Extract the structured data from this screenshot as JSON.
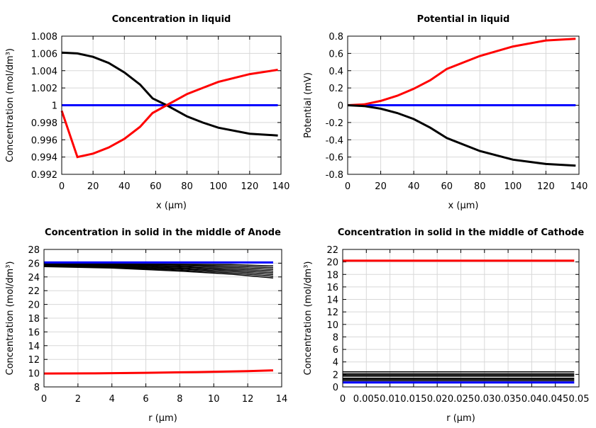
{
  "chart_data": [
    {
      "type": "line",
      "title": "Concentration in liquid",
      "xlabel": "x (µm)",
      "ylabel": "Concentration (mol/dm³)",
      "xlim": [
        0,
        140
      ],
      "ylim": [
        0.992,
        1.008
      ],
      "xticks": [
        "0",
        "20",
        "40",
        "60",
        "80",
        "100",
        "120",
        "140"
      ],
      "yticks": [
        "0.992",
        "0.994",
        "0.996",
        "0.998",
        "1",
        "1.002",
        "1.004",
        "1.006",
        "1.008"
      ],
      "grid": true,
      "series": [
        {
          "color": "#0000ff",
          "x": [
            0,
            138
          ],
          "y": [
            1.0,
            1.0
          ]
        },
        {
          "color": "#000000",
          "x": [
            0,
            10,
            20,
            30,
            40,
            50,
            58,
            67,
            80,
            90,
            100,
            120,
            138
          ],
          "y": [
            1.0061,
            1.006,
            1.0056,
            1.0049,
            1.0038,
            1.0024,
            1.0008,
            1.0,
            0.9987,
            0.998,
            0.9974,
            0.9967,
            0.9965
          ]
        },
        {
          "color": "#ff0000",
          "x": [
            0,
            10,
            20,
            30,
            40,
            50,
            58,
            67,
            80,
            90,
            100,
            120,
            138
          ],
          "y": [
            0.99935,
            0.994,
            0.9944,
            0.9951,
            0.9961,
            0.9975,
            0.9991,
            1.0,
            1.0013,
            1.002,
            1.0027,
            1.0036,
            1.0041
          ]
        }
      ]
    },
    {
      "type": "line",
      "title": "Potential in liquid",
      "xlabel": "x (µm)",
      "ylabel": "Potential (mV)",
      "xlim": [
        0,
        140
      ],
      "ylim": [
        -0.8,
        0.8
      ],
      "xticks": [
        "0",
        "20",
        "40",
        "60",
        "80",
        "100",
        "120",
        "140"
      ],
      "yticks": [
        "-0.8",
        "-0.6",
        "-0.4",
        "-0.2",
        "0",
        "0.2",
        "0.4",
        "0.6",
        "0.8"
      ],
      "grid": true,
      "series": [
        {
          "color": "#0000ff",
          "x": [
            0,
            138
          ],
          "y": [
            0,
            0
          ]
        },
        {
          "color": "#ff0000",
          "x": [
            0,
            10,
            20,
            30,
            40,
            50,
            60,
            80,
            100,
            120,
            138
          ],
          "y": [
            0,
            0.01,
            0.05,
            0.11,
            0.19,
            0.29,
            0.42,
            0.57,
            0.68,
            0.75,
            0.77
          ]
        },
        {
          "color": "#000000",
          "x": [
            0,
            10,
            20,
            30,
            40,
            50,
            60,
            80,
            100,
            120,
            138
          ],
          "y": [
            0,
            -0.01,
            -0.04,
            -0.09,
            -0.16,
            -0.26,
            -0.38,
            -0.53,
            -0.63,
            -0.68,
            -0.7
          ]
        }
      ]
    },
    {
      "type": "line",
      "title": "Concentration in solid in the middle of Anode",
      "xlabel": "r (µm)",
      "ylabel": "Concentration (mol/dm³)",
      "xlim": [
        0,
        14
      ],
      "ylim": [
        8,
        28
      ],
      "xticks": [
        "0",
        "2",
        "4",
        "6",
        "8",
        "10",
        "12",
        "14"
      ],
      "yticks": [
        "8",
        "10",
        "12",
        "14",
        "16",
        "18",
        "20",
        "22",
        "24",
        "26",
        "28"
      ],
      "grid": true,
      "series": [
        {
          "color": "#000000",
          "x": [
            0,
            4,
            8,
            11,
            13.5
          ],
          "y": [
            25.9,
            25.9,
            25.85,
            25.8,
            25.6
          ]
        },
        {
          "color": "#000000",
          "x": [
            0,
            4,
            8,
            11,
            13.5
          ],
          "y": [
            25.85,
            25.85,
            25.75,
            25.6,
            25.35
          ]
        },
        {
          "color": "#000000",
          "x": [
            0,
            4,
            8,
            11,
            13.5
          ],
          "y": [
            25.8,
            25.75,
            25.6,
            25.4,
            25.1
          ]
        },
        {
          "color": "#000000",
          "x": [
            0,
            4,
            8,
            11,
            13.5
          ],
          "y": [
            25.75,
            25.7,
            25.45,
            25.2,
            24.85
          ]
        },
        {
          "color": "#000000",
          "x": [
            0,
            4,
            8,
            11,
            13.5
          ],
          "y": [
            25.7,
            25.6,
            25.3,
            25.0,
            24.6
          ]
        },
        {
          "color": "#000000",
          "x": [
            0,
            4,
            8,
            11,
            13.5
          ],
          "y": [
            25.65,
            25.5,
            25.15,
            24.8,
            24.35
          ]
        },
        {
          "color": "#000000",
          "x": [
            0,
            4,
            8,
            11,
            13.5
          ],
          "y": [
            25.55,
            25.4,
            25.0,
            24.6,
            24.1
          ]
        },
        {
          "color": "#000000",
          "x": [
            0,
            4,
            8,
            11,
            13.5
          ],
          "y": [
            25.5,
            25.3,
            24.85,
            24.4,
            23.85
          ]
        },
        {
          "color": "#0000ff",
          "x": [
            0,
            13.5
          ],
          "y": [
            26.1,
            26.1
          ]
        },
        {
          "color": "#ff0000",
          "x": [
            0,
            3,
            6,
            9,
            12,
            13.5
          ],
          "y": [
            9.95,
            9.97,
            10.05,
            10.15,
            10.3,
            10.4
          ]
        }
      ]
    },
    {
      "type": "line",
      "title": "Concentration in solid in the middle of Cathode",
      "xlabel": "r (µm)",
      "ylabel": "Concentration (mol/dm³)",
      "xlim": [
        0,
        0.05
      ],
      "ylim": [
        0,
        22
      ],
      "xticks": [
        "0",
        "0.005",
        "0.01",
        "0.015",
        "0.02",
        "0.025",
        "0.03",
        "0.035",
        "0.04",
        "0.045",
        "0.05"
      ],
      "yticks": [
        "0",
        "2",
        "4",
        "6",
        "8",
        "10",
        "12",
        "14",
        "16",
        "18",
        "20",
        "22"
      ],
      "grid": true,
      "series": [
        {
          "color": "#ff0000",
          "x": [
            0,
            0.049
          ],
          "y": [
            20.2,
            20.2
          ]
        },
        {
          "color": "#000000",
          "x": [
            0,
            0.049
          ],
          "y": [
            1.0,
            1.0
          ]
        },
        {
          "color": "#000000",
          "x": [
            0,
            0.049
          ],
          "y": [
            1.2,
            1.2
          ]
        },
        {
          "color": "#000000",
          "x": [
            0,
            0.049
          ],
          "y": [
            1.4,
            1.4
          ]
        },
        {
          "color": "#000000",
          "x": [
            0,
            0.049
          ],
          "y": [
            1.7,
            1.7
          ]
        },
        {
          "color": "#000000",
          "x": [
            0,
            0.049
          ],
          "y": [
            1.9,
            1.9
          ]
        },
        {
          "color": "#000000",
          "x": [
            0,
            0.049
          ],
          "y": [
            2.1,
            2.1
          ]
        },
        {
          "color": "#000000",
          "x": [
            0,
            0.049
          ],
          "y": [
            2.4,
            2.4
          ]
        },
        {
          "color": "#0000ff",
          "x": [
            0,
            0.049
          ],
          "y": [
            0.7,
            0.7
          ]
        }
      ]
    }
  ]
}
